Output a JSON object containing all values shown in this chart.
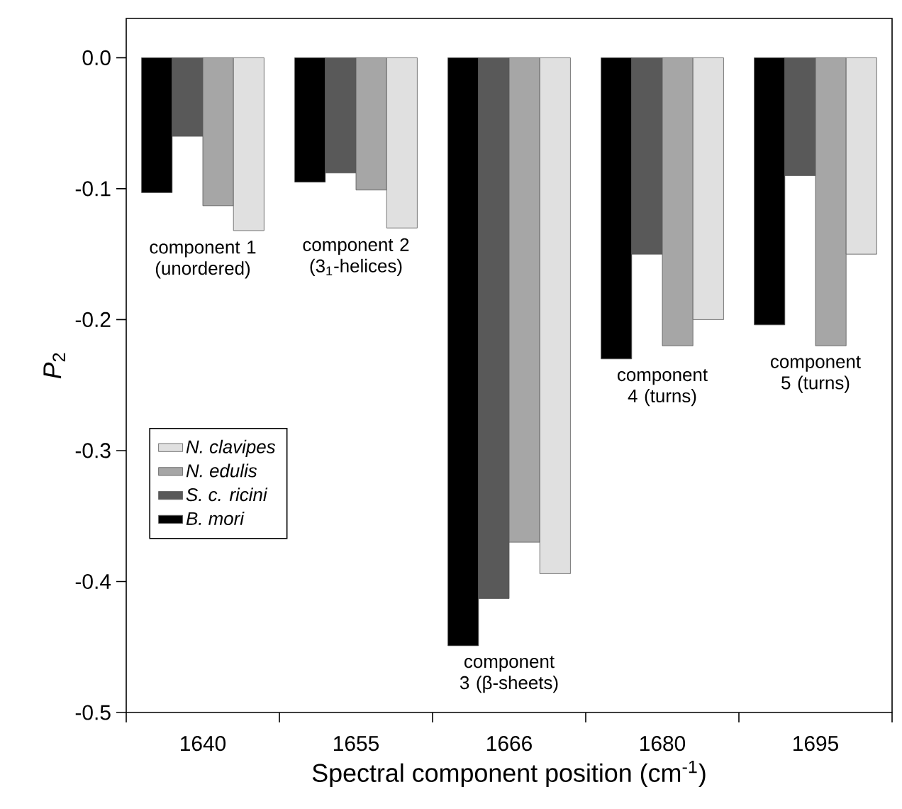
{
  "chart_data": {
    "type": "bar",
    "xlabel": "Spectral component position (cm$^{-1}$)",
    "ylabel": "*P*$_{2}$",
    "categories": [
      "1640",
      "1655",
      "1666",
      "1680",
      "1695"
    ],
    "series": [
      {
        "name": "B. mori",
        "color": "#000000",
        "values": [
          -0.103,
          -0.095,
          -0.449,
          -0.23,
          -0.204
        ]
      },
      {
        "name": "S. c. ricini",
        "color": "#595959",
        "values": [
          -0.06,
          -0.088,
          -0.413,
          -0.15,
          -0.09
        ]
      },
      {
        "name": "N. edulis",
        "color": "#a6a6a6",
        "values": [
          -0.113,
          -0.101,
          -0.37,
          -0.22,
          -0.22
        ]
      },
      {
        "name": "N. clavipes",
        "color": "#e0e0e0",
        "values": [
          -0.132,
          -0.13,
          -0.394,
          -0.2,
          -0.15
        ]
      }
    ],
    "ylim": [
      -0.5,
      0.03
    ],
    "yticks": [
      {
        "value": 0,
        "label": "0.0"
      },
      -0.1,
      -0.2,
      -0.3,
      -0.4,
      -0.5
    ],
    "annotations": [
      "component 1 (unordered)",
      "component 2 (3$_{1}$-helices)",
      "component 3 (β-sheets)",
      "component 4 (turns)",
      "component 5 (turns)"
    ],
    "legend": "left",
    "grid": false
  }
}
